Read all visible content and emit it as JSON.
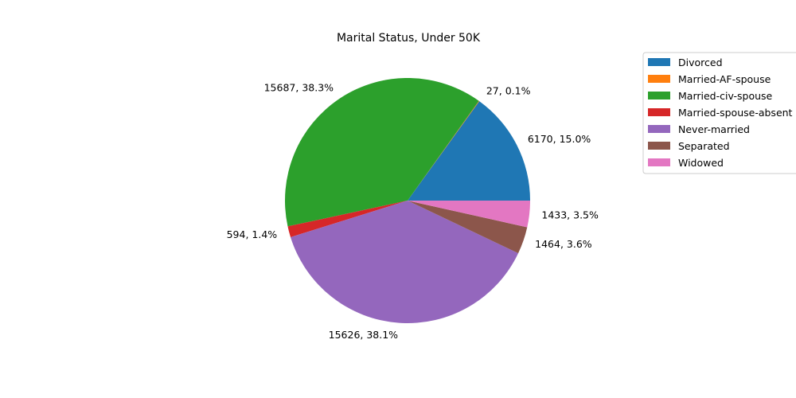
{
  "chart_data": {
    "type": "pie",
    "title": "Marital Status, Under 50K",
    "categories": [
      " Divorced",
      " Married-AF-spouse",
      " Married-civ-spouse",
      " Married-spouse-absent",
      " Never-married",
      " Separated",
      " Widowed"
    ],
    "values": [
      6170,
      27,
      15687,
      594,
      15626,
      1464,
      1433
    ],
    "labels": [
      "6170, 15.0%",
      "27, 0.1%",
      "15687, 38.3%",
      "594, 1.4%",
      "15626, 38.1%",
      "1464, 3.6%",
      "1433, 3.5%"
    ],
    "colors": [
      "#1f77b4",
      "#ff7f0e",
      "#2ca02c",
      "#d62728",
      "#9467bd",
      "#8c564b",
      "#e377c2"
    ],
    "legend_position": "top-right",
    "start_angle": 0,
    "direction": "counterclockwise"
  }
}
